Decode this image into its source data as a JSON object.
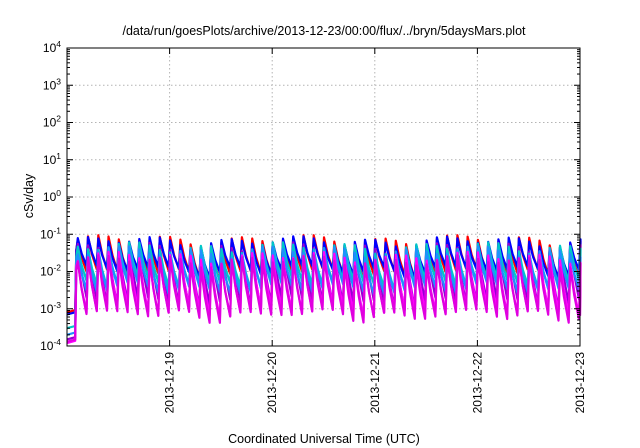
{
  "chart_data": {
    "type": "line",
    "title": "/data/run/goesPlots/archive/2013-12-23/00:00/flux/../bryn/5daysMars.plot",
    "xlabel": "Coordinated Universal Time (UTC)",
    "ylabel": "cSv/day",
    "yscale": "log",
    "ylim_exponents": [
      -4,
      4
    ],
    "y_tick_exponents": [
      -4,
      -3,
      -2,
      -1,
      0,
      1,
      2,
      3,
      4
    ],
    "y_tick_base": "10",
    "xlim": [
      "2013-12-18 00:00",
      "2013-12-23 00:00"
    ],
    "x_tick_labels": [
      "2013-12-19",
      "2013-12-20",
      "2013-12-21",
      "2013-12-22",
      "2013-12-23"
    ],
    "x_tick_times": [
      "2013-12-19 00:00",
      "2013-12-20 00:00",
      "2013-12-21 00:00",
      "2013-12-22 00:00",
      "2013-12-23 00:00"
    ],
    "grid": true,
    "legend": "none",
    "orbit_period_hours": 2.4,
    "data_start": "2013-12-18 00:00",
    "onset": "2013-12-18 02:10",
    "series": [
      {
        "color": "#ff0000",
        "pre_onset_value": 0.0008,
        "peak": 0.07,
        "trough": 0.009
      },
      {
        "color": "#0000ff",
        "pre_onset_value": 0.0007,
        "peak": 0.065,
        "trough": 0.011
      },
      {
        "color": "#9400d3",
        "pre_onset_value": 0.00015,
        "peak": 0.045,
        "trough": 0.0015
      },
      {
        "color": "#00c8c8",
        "pre_onset_value": 0.0003,
        "peak": 0.045,
        "trough": 0.005
      },
      {
        "color": "#1e90ff",
        "pre_onset_value": 0.0002,
        "peak": 0.035,
        "trough": 0.0035
      },
      {
        "color": "#ff00ff",
        "pre_onset_value": 0.00012,
        "peak": 0.025,
        "trough": 0.0009
      },
      {
        "color": "#e000e0",
        "pre_onset_value": 0.00013,
        "peak": 0.02,
        "trough": 0.0007
      }
    ]
  }
}
